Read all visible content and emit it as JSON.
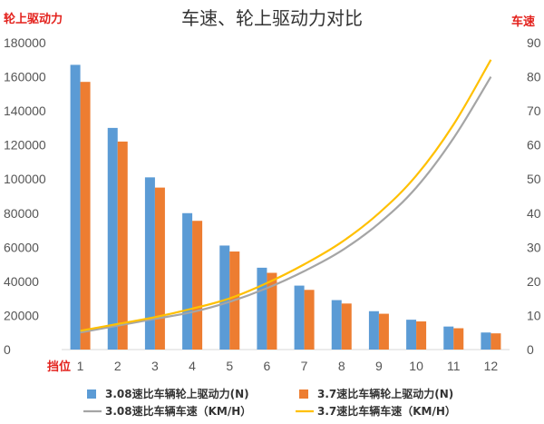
{
  "chart_data": {
    "type": "bar",
    "title": "车速、轮上驱动力对比",
    "y_left_label": "轮上驱动力",
    "y_right_label": "车速",
    "x_label": "挡位",
    "categories": [
      "1",
      "2",
      "3",
      "4",
      "5",
      "6",
      "7",
      "8",
      "9",
      "10",
      "11",
      "12"
    ],
    "y_left_ticks": [
      "0",
      "20000",
      "40000",
      "60000",
      "80000",
      "100000",
      "120000",
      "140000",
      "160000",
      "180000"
    ],
    "y_right_ticks": [
      "0",
      "10",
      "20",
      "30",
      "40",
      "50",
      "60",
      "70",
      "80",
      "90"
    ],
    "ylim_left": [
      0,
      180000
    ],
    "ylim_right": [
      0,
      90
    ],
    "grid": false,
    "legend_position": "bottom",
    "series": [
      {
        "name": "3.08速比车辆轮上驱动力(N)",
        "kind": "bar",
        "axis": "left",
        "color": "#5b9bd5",
        "values": [
          167000,
          130000,
          101000,
          80000,
          61000,
          48000,
          37500,
          29000,
          22500,
          17500,
          13500,
          10000
        ]
      },
      {
        "name": "3.7速比车辆轮上驱动力(N)",
        "kind": "bar",
        "axis": "left",
        "color": "#ed7d31",
        "values": [
          157000,
          122000,
          95000,
          75500,
          57500,
          45000,
          35000,
          27000,
          21000,
          16500,
          12500,
          9500
        ]
      },
      {
        "name": "3.08速比车辆车速（KM/H）",
        "kind": "line",
        "axis": "right",
        "color": "#a5a5a5",
        "values": [
          5.0,
          7.0,
          9.0,
          11.0,
          14.0,
          18.0,
          23.0,
          29.0,
          37.0,
          47.5,
          62.0,
          80.0
        ]
      },
      {
        "name": "3.7速比车辆车速（KM/H）",
        "kind": "line",
        "axis": "right",
        "color": "#ffc000",
        "values": [
          5.5,
          7.5,
          9.5,
          12.0,
          15.0,
          19.5,
          25.0,
          31.5,
          40.0,
          51.0,
          66.0,
          85.0
        ]
      }
    ]
  }
}
